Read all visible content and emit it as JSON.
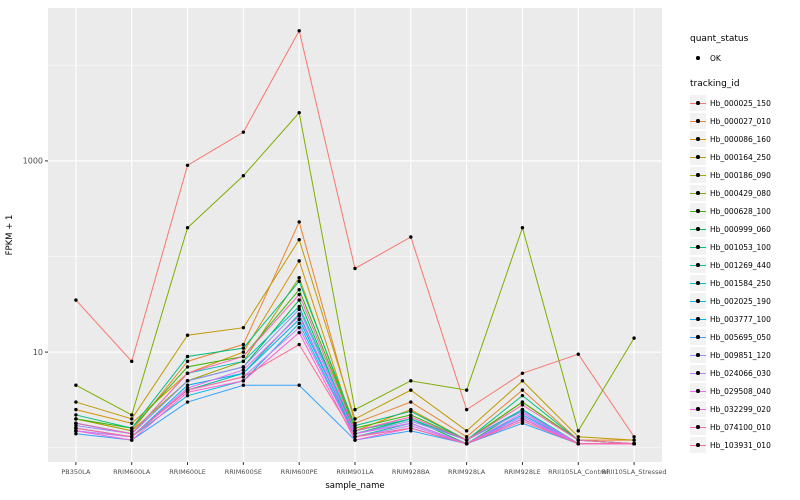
{
  "chart_data": {
    "type": "line",
    "title": "",
    "xlabel": "sample_name",
    "ylabel": "FPKM + 1",
    "y_scale": "log10",
    "y_tick_labels": [
      "10",
      "1000"
    ],
    "y_tick_values": [
      10,
      1000
    ],
    "y_minor_values": [
      1,
      100,
      10000
    ],
    "ylim_log": [
      -0.15,
      4.6
    ],
    "panel_bg": "#EBEBEB",
    "grid_color": "#FFFFFF",
    "point_color": "#000000",
    "categories": [
      "PB350LA",
      "RRIM600LA",
      "RRIM600LE",
      "RRIM600SE",
      "RRIM600PE",
      "RRIM901LA",
      "RRIM928BA",
      "RRIM928LA",
      "RRIM928LE",
      "RRII105LA_Control",
      "RRII105LA_Stressed"
    ],
    "series": [
      {
        "name": "Hb_000025_150",
        "color": "#F8766D",
        "values": [
          35,
          8,
          900,
          2000,
          23000,
          75,
          160,
          2.5,
          6,
          9.5,
          1.3
        ]
      },
      {
        "name": "Hb_000027_010",
        "color": "#EA8331",
        "values": [
          2,
          1.5,
          8,
          12,
          230,
          1.8,
          3,
          1.3,
          4,
          1.2,
          1.2
        ]
      },
      {
        "name": "Hb_000086_160",
        "color": "#D89000",
        "values": [
          2.5,
          1.8,
          6,
          10,
          90,
          1.5,
          2.5,
          1.2,
          3,
          1.2,
          1.1
        ]
      },
      {
        "name": "Hb_000164_250",
        "color": "#C09B00",
        "values": [
          3,
          2,
          15,
          18,
          150,
          2,
          4,
          1.5,
          5,
          1.3,
          1.2
        ]
      },
      {
        "name": "Hb_000186_090",
        "color": "#A3A500",
        "values": [
          2,
          1.5,
          5,
          8,
          60,
          1.5,
          2,
          1.2,
          2.5,
          1.1,
          1.1
        ]
      },
      {
        "name": "Hb_000429_080",
        "color": "#7CAE00",
        "values": [
          4.5,
          2.2,
          200,
          700,
          3200,
          2.5,
          5,
          4,
          200,
          1.5,
          14
        ]
      },
      {
        "name": "Hb_000628_100",
        "color": "#39B600",
        "values": [
          2,
          1.6,
          7,
          9,
          45,
          1.6,
          2.2,
          1.2,
          3,
          1.2,
          1.1
        ]
      },
      {
        "name": "Hb_000999_060",
        "color": "#00BB4E",
        "values": [
          1.8,
          1.4,
          5,
          7,
          35,
          1.4,
          2,
          1.1,
          2.5,
          1.1,
          1.1
        ]
      },
      {
        "name": "Hb_001053_100",
        "color": "#00BF7D",
        "values": [
          2.2,
          1.6,
          9,
          11,
          55,
          1.7,
          2.4,
          1.2,
          3.5,
          1.2,
          1.1
        ]
      },
      {
        "name": "Hb_001269_440",
        "color": "#00C1A3",
        "values": [
          1.6,
          1.3,
          4,
          6,
          25,
          1.3,
          1.8,
          1.1,
          2,
          1.1,
          1.1
        ]
      },
      {
        "name": "Hb_001584_250",
        "color": "#00BFC4",
        "values": [
          1.8,
          1.4,
          6,
          8,
          30,
          1.5,
          2,
          1.2,
          2.5,
          1.1,
          1.1
        ]
      },
      {
        "name": "Hb_002025_190",
        "color": "#00BAE0",
        "values": [
          1.5,
          1.3,
          3.5,
          5,
          20,
          1.3,
          1.6,
          1.1,
          2,
          1.1,
          1.1
        ]
      },
      {
        "name": "Hb_003777_100",
        "color": "#00B0F6",
        "values": [
          1.6,
          1.3,
          4.5,
          6,
          22,
          1.4,
          1.8,
          1.1,
          2.2,
          1.1,
          1.1
        ]
      },
      {
        "name": "Hb_005695_050",
        "color": "#35A2FF",
        "values": [
          1.4,
          1.2,
          3,
          4.5,
          4.5,
          1.2,
          1.5,
          1.1,
          1.8,
          1.1,
          1.1
        ]
      },
      {
        "name": "Hb_009851_120",
        "color": "#9590FF",
        "values": [
          1.7,
          1.4,
          5,
          7,
          28,
          1.4,
          1.9,
          1.2,
          2.4,
          1.1,
          1.1
        ]
      },
      {
        "name": "Hb_024066_030",
        "color": "#C77CFF",
        "values": [
          1.5,
          1.3,
          4,
          5.5,
          18,
          1.3,
          1.7,
          1.1,
          2.1,
          1.1,
          1.1
        ]
      },
      {
        "name": "Hb_029508_040",
        "color": "#E76BF3",
        "values": [
          1.6,
          1.3,
          4.2,
          6.5,
          24,
          1.4,
          1.8,
          1.1,
          2.3,
          1.1,
          1.1
        ]
      },
      {
        "name": "Hb_032299_020",
        "color": "#FA62DB",
        "values": [
          1.5,
          1.2,
          3.8,
          5,
          16,
          1.2,
          1.6,
          1.1,
          2,
          1.1,
          1.1
        ]
      },
      {
        "name": "Hb_074100_010",
        "color": "#FF62BC",
        "values": [
          1.8,
          1.4,
          6,
          9,
          40,
          1.5,
          2.1,
          1.2,
          2.8,
          1.2,
          1.1
        ]
      },
      {
        "name": "Hb_103931_010",
        "color": "#FF6A98",
        "values": [
          1.6,
          1.3,
          4,
          5.5,
          12,
          1.3,
          1.6,
          1.1,
          1.9,
          1.1,
          1.1
        ]
      }
    ]
  },
  "legend": {
    "quant_status_title": "quant_status",
    "quant_status_items": [
      {
        "label": "OK"
      }
    ],
    "tracking_id_title": "tracking_id"
  }
}
